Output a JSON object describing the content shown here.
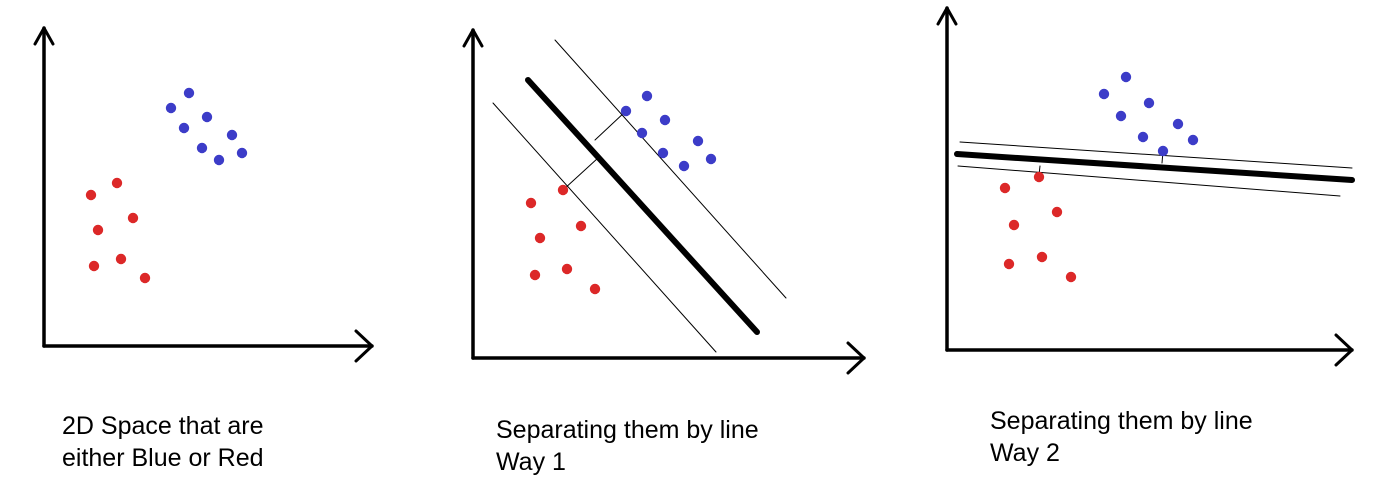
{
  "colors": {
    "blue": "#3c3cc8",
    "red": "#dc2828",
    "line": "#000000"
  },
  "panels": [
    {
      "id": "panel-1",
      "caption": [
        "2D Space that are",
        "either Blue or Red"
      ],
      "has_separator": false
    },
    {
      "id": "panel-2",
      "caption": [
        "Separating them by line",
        "Way 1"
      ],
      "has_separator": true
    },
    {
      "id": "panel-3",
      "caption": [
        "Separating them by line",
        "Way 2"
      ],
      "has_separator": true
    }
  ]
}
